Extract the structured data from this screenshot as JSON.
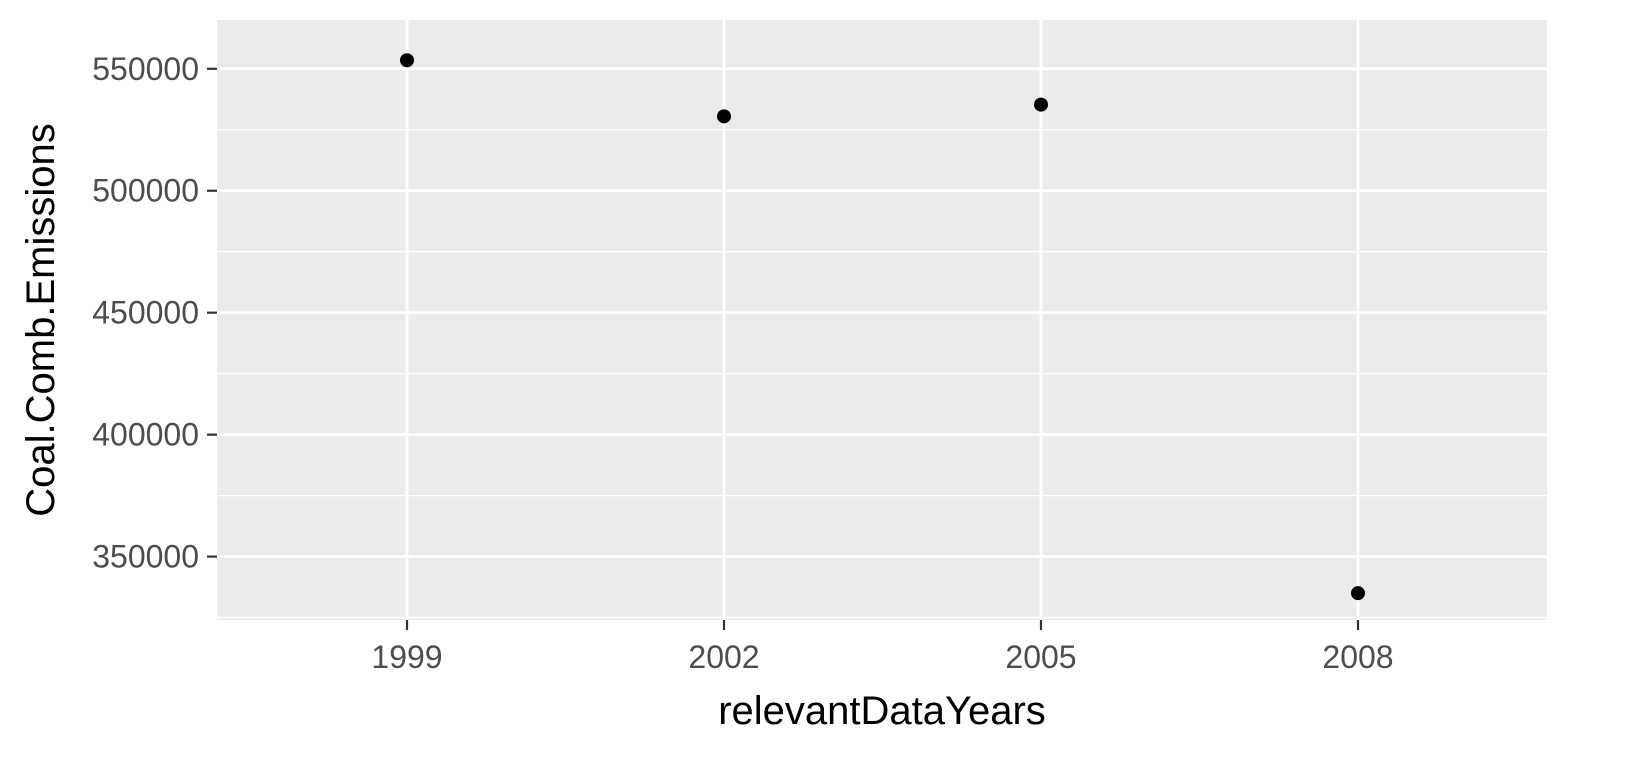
{
  "chart_data": {
    "type": "scatter",
    "title": "",
    "xlabel": "relevantDataYears",
    "ylabel": "Coal.Comb.Emissions",
    "x": [
      "1999",
      "2002",
      "2005",
      "2008"
    ],
    "y": [
      553500,
      530500,
      535300,
      335000
    ],
    "ylim": [
      324000,
      570000
    ],
    "y_ticks": [
      350000,
      400000,
      450000,
      500000,
      550000
    ],
    "y_tick_labels": [
      "350000",
      "400000",
      "450000",
      "500000",
      "550000"
    ],
    "grid": true,
    "legend": "none",
    "colors": {
      "panel_background": "#ebebeb",
      "grid_major": "#ffffff",
      "point": "#000000",
      "tick_text": "#4d4d4d"
    }
  }
}
